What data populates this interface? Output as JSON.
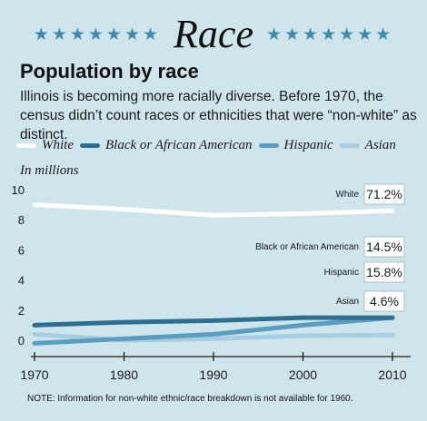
{
  "banner": {
    "title": "Race",
    "stars_left": "★★★★★★★",
    "stars_right": "★★★★★★★"
  },
  "heading": "Population by race",
  "intro": "Illinois is becoming more racially diverse. Before 1970, the census didn’t count races or ethnicities that were “non-white” as distinct.",
  "note": "NOTE: Information for non-white ethnic/race breakdown is not available for 1960.",
  "chart_data": {
    "type": "line",
    "ylabel": "In millions",
    "x": [
      1970,
      1980,
      1990,
      2000,
      2010
    ],
    "xlim": [
      1970,
      2010
    ],
    "ylim": [
      0,
      10
    ],
    "yticks": [
      0,
      2,
      4,
      6,
      8,
      10
    ],
    "grid": false,
    "legend_position": "top",
    "series": [
      {
        "name": "White",
        "color": "#ffffff",
        "values": [
          9.0,
          8.7,
          8.3,
          8.4,
          8.6
        ],
        "share_label": "White",
        "share": "71.2%"
      },
      {
        "name": "Black or African American",
        "color": "#2c6f91",
        "values": [
          1.0,
          1.2,
          1.3,
          1.5,
          1.5
        ],
        "share_label": "Black or African American",
        "share": "14.5%"
      },
      {
        "name": "Hispanic",
        "color": "#5b9dc0",
        "values": [
          -0.2,
          0.1,
          0.4,
          1.0,
          1.5
        ],
        "share_label": "Hispanic",
        "share": "15.8%"
      },
      {
        "name": "Asian",
        "color": "#a6cde0",
        "values": [
          0.4,
          0.0,
          0.1,
          0.3,
          0.35
        ],
        "share_label": "Asian",
        "share": "4.6%"
      }
    ]
  }
}
